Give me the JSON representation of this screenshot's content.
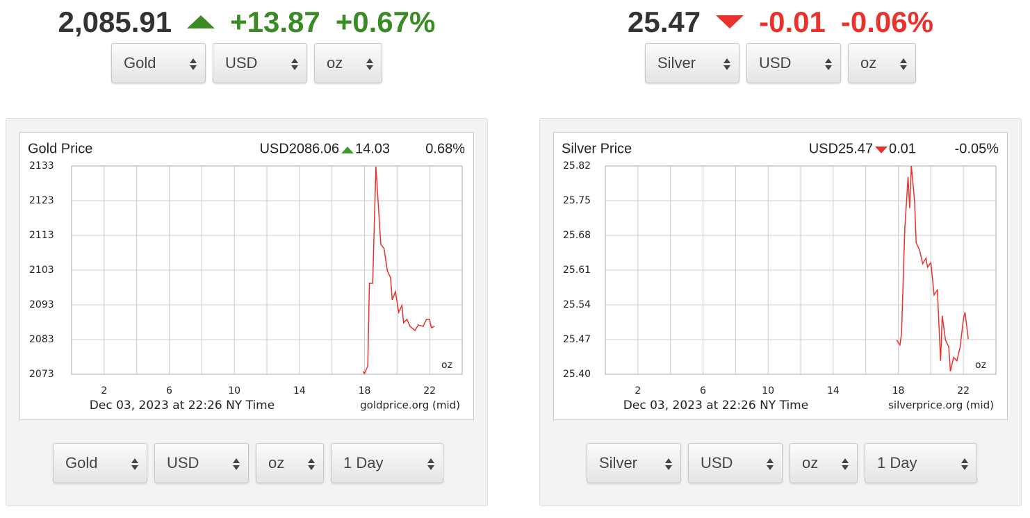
{
  "widgets": [
    {
      "price": "2,085.91",
      "change": "+13.87",
      "change_percent": "+0.67%",
      "selects": [
        "Gold",
        "USD",
        "oz"
      ],
      "range_selects": [
        "Gold",
        "USD",
        "oz",
        "1 Day"
      ]
    },
    {
      "price": "25.47",
      "change": "-0.01",
      "change_percent": "-0.06%",
      "selects": [
        "Silver",
        "USD",
        "oz"
      ],
      "range_selects": [
        "Silver",
        "USD",
        "oz",
        "1 Day"
      ]
    }
  ],
  "chart_data": [
    {
      "type": "line",
      "title": "Gold Price",
      "header_price": "USD2086.06",
      "header_change": "14.03",
      "header_percent": "0.68%",
      "header_color": "#3f9a2c",
      "color": "#e8322b",
      "grid": true,
      "unit": "oz",
      "footer": "Dec 03, 2023 at 22:26 NY Time",
      "source": "goldprice.org (mid)",
      "xlim": [
        0,
        24
      ],
      "xticks": [
        2,
        6,
        10,
        14,
        18,
        22
      ],
      "xminorticks": [
        4,
        8,
        12,
        16,
        20
      ],
      "ylim": [
        2073,
        2133
      ],
      "yticks": [
        2073,
        2083,
        2093,
        2103,
        2113,
        2123,
        2133
      ],
      "x": [
        17.9,
        18.0,
        18.2,
        18.3,
        18.5,
        18.7,
        19.0,
        19.2,
        19.4,
        19.6,
        19.7,
        19.9,
        20.1,
        20.3,
        20.4,
        20.6,
        20.8,
        21.1,
        21.3,
        21.6,
        21.8,
        22.0,
        22.1,
        22.3
      ],
      "values": [
        2073.8,
        2073.2,
        2075.4,
        2099.2,
        2099.2,
        2132.8,
        2110.4,
        2109.2,
        2102.8,
        2100.8,
        2094.4,
        2096.8,
        2090.8,
        2092.8,
        2087.8,
        2088.8,
        2086.8,
        2085.6,
        2087.2,
        2086.8,
        2088.8,
        2088.8,
        2086.4,
        2086.8
      ]
    },
    {
      "type": "line",
      "title": "Silver Price",
      "header_price": "USD25.47",
      "header_change": "0.01",
      "header_percent": "-0.05%",
      "header_color": "#e8322b",
      "color": "#e8322b",
      "grid": true,
      "unit": "oz",
      "footer": "Dec 03, 2023 at 22:26 NY Time",
      "source": "silverprice.org (mid)",
      "xlim": [
        0,
        24
      ],
      "xticks": [
        2,
        6,
        10,
        14,
        18,
        22
      ],
      "xminorticks": [
        4,
        8,
        12,
        16,
        20
      ],
      "ylim": [
        25.4,
        25.82
      ],
      "yticks": [
        {
          "value": 25.4,
          "label": "25.40"
        },
        25.47,
        25.54,
        25.61,
        25.68,
        25.75,
        25.82
      ],
      "x": [
        17.9,
        18.1,
        18.2,
        18.4,
        18.6,
        18.7,
        18.8,
        19.0,
        19.1,
        19.3,
        19.5,
        19.7,
        19.8,
        20.0,
        20.2,
        20.4,
        20.6,
        20.7,
        20.9,
        21.1,
        21.2,
        21.4,
        21.6,
        21.8,
        22.0,
        22.1,
        22.3
      ],
      "values": [
        25.469,
        25.459,
        25.483,
        25.693,
        25.798,
        25.735,
        25.82,
        25.749,
        25.665,
        25.651,
        25.623,
        25.634,
        25.616,
        25.625,
        25.56,
        25.57,
        25.427,
        25.518,
        25.469,
        25.455,
        25.406,
        25.434,
        25.427,
        25.455,
        25.511,
        25.525,
        25.471
      ]
    }
  ]
}
